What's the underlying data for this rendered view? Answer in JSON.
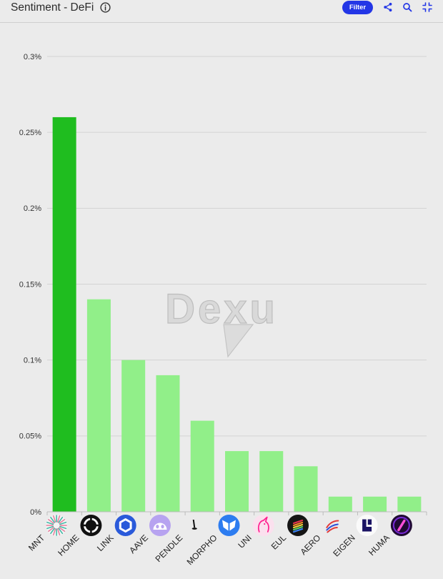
{
  "header": {
    "filter_label": "Filter",
    "icons": {
      "info": "info-icon",
      "share": "share-icon",
      "search": "search-icon",
      "collapse": "collapse-icon"
    }
  },
  "colors": {
    "accent": "#2336e6",
    "background": "#ebebeb",
    "highlight_bar": "#1fbd1f",
    "bar": "#91ef89",
    "gridline": "#d3d3d3",
    "tick_text": "#333333"
  },
  "watermark": {
    "text": "Dexu"
  },
  "chart_data": {
    "type": "bar",
    "title": "Sentiment - DeFi",
    "categories": [
      "MNT",
      "HOME",
      "LINK",
      "AAVE",
      "PENDLE",
      "MORPHO",
      "UNI",
      "EUL",
      "AERO",
      "EIGEN",
      "HUMA"
    ],
    "values": [
      0.26,
      0.14,
      0.1,
      0.09,
      0.06,
      0.04,
      0.04,
      0.03,
      0.01,
      0.01,
      0.01
    ],
    "value_unit": "%",
    "ylim": [
      0,
      0.3
    ],
    "ytick_labels": [
      "0%",
      "0.05%",
      "0.1%",
      "0.15%",
      "0.2%",
      "0.25%",
      "0.3%"
    ],
    "highlight": "MNT",
    "grid": true,
    "logos": [
      "mnt-icon",
      "home-icon",
      "link-icon",
      "aave-icon",
      "pendle-icon",
      "morpho-icon",
      "uni-icon",
      "eul-icon",
      "aero-icon",
      "eigen-icon",
      "huma-icon"
    ]
  }
}
